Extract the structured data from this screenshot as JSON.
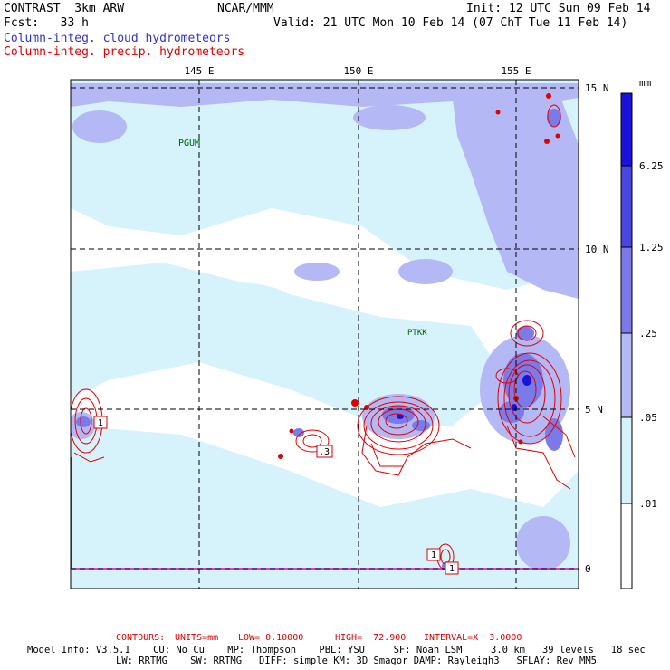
{
  "header": {
    "left_line1": "CONTRAST  3km ARW",
    "center_line1": "NCAR/MMM",
    "right_line1": "Init: 12 UTC Sun 09 Feb 14",
    "left_line2": "Fcst:   33 h",
    "right_line2": "Valid: 21 UTC Mon 10 Feb 14 (07 ChT Tue 11 Feb 14)",
    "legend_cloud": "Column-integ. cloud hydrometeors",
    "legend_precip": "Column-integ. precip. hydrometeors"
  },
  "map": {
    "lon_labels": [
      "145 E",
      "150 E",
      "155 E"
    ],
    "lat_labels": [
      "15 N",
      "10 N",
      "5 N",
      "0"
    ],
    "stations": [
      "PGUM",
      "PTKK"
    ],
    "contour_labels": [
      "1",
      ".3",
      "1",
      "1"
    ]
  },
  "colorbar": {
    "unit": "mm",
    "levels": [
      "6.25",
      "1.25",
      ".25",
      ".05",
      ".01"
    ],
    "colors": [
      "#1a12d8",
      "#4a46e0",
      "#7c7ae8",
      "#b4b8f4",
      "#d6f2fb",
      "#ffffff"
    ]
  },
  "footer": {
    "contours_label": "CONTOURS:",
    "units": "UNITS=mm",
    "low": "LOW= 0.10000",
    "high": "HIGH=  72.900",
    "interval": "INTERVAL=X  3.0000",
    "model_line1": "Model Info: V3.5.1    CU: No Cu    MP: Thompson    PBL: YSU     SF: Noah LSM     3.0 km   39 levels   18 sec",
    "model_line2": "LW: RRTMG    SW: RRTMG   DIFF: simple KM: 3D Smagor DAMP: Rayleigh3   SFLAY: Rev MM5"
  }
}
